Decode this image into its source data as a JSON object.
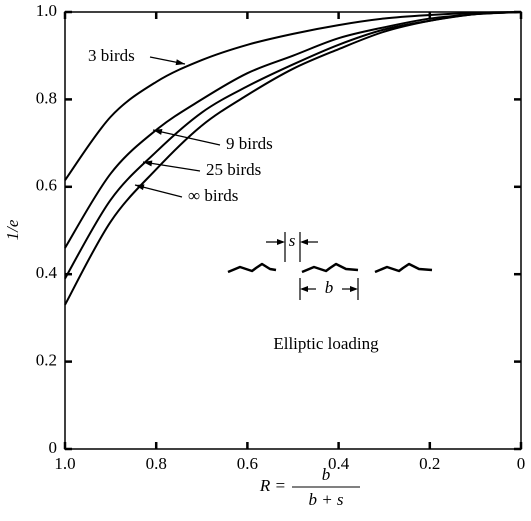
{
  "chart_data": {
    "type": "line",
    "y_label": "1/e",
    "x_label": {
      "lhs": "R =",
      "numerator": "b",
      "denominator": "b + s"
    },
    "x": [
      1.0,
      0.9,
      0.8,
      0.7,
      0.6,
      0.5,
      0.4,
      0.3,
      0.2,
      0.1,
      0
    ],
    "series": [
      {
        "name": "3 birds",
        "color": "#000000",
        "values": [
          0.615,
          0.76,
          0.84,
          0.89,
          0.925,
          0.95,
          0.97,
          0.985,
          0.993,
          0.998,
          1.0
        ]
      },
      {
        "name": "9 birds",
        "color": "#000000",
        "values": [
          0.46,
          0.63,
          0.73,
          0.8,
          0.86,
          0.9,
          0.94,
          0.965,
          0.985,
          0.995,
          1.0
        ]
      },
      {
        "name": "25 birds",
        "color": "#000000",
        "values": [
          0.39,
          0.57,
          0.68,
          0.77,
          0.83,
          0.88,
          0.925,
          0.96,
          0.98,
          0.995,
          1.0
        ]
      },
      {
        "name": "∞ birds",
        "color": "#000000",
        "values": [
          0.33,
          0.52,
          0.64,
          0.74,
          0.81,
          0.87,
          0.915,
          0.955,
          0.98,
          0.995,
          1.0
        ]
      }
    ],
    "annotations": [
      "s",
      "b",
      "Elliptic loading"
    ],
    "xlim": [
      1,
      0
    ],
    "ylim": [
      0,
      1
    ],
    "xticks": [
      {
        "value": 1,
        "label": "1.0"
      },
      0.8,
      0.6,
      0.4,
      0.2,
      0
    ],
    "yticks": [
      0,
      0.2,
      0.4,
      0.6,
      0.8,
      {
        "value": 1,
        "label": "1.0"
      }
    ],
    "grid": false
  }
}
